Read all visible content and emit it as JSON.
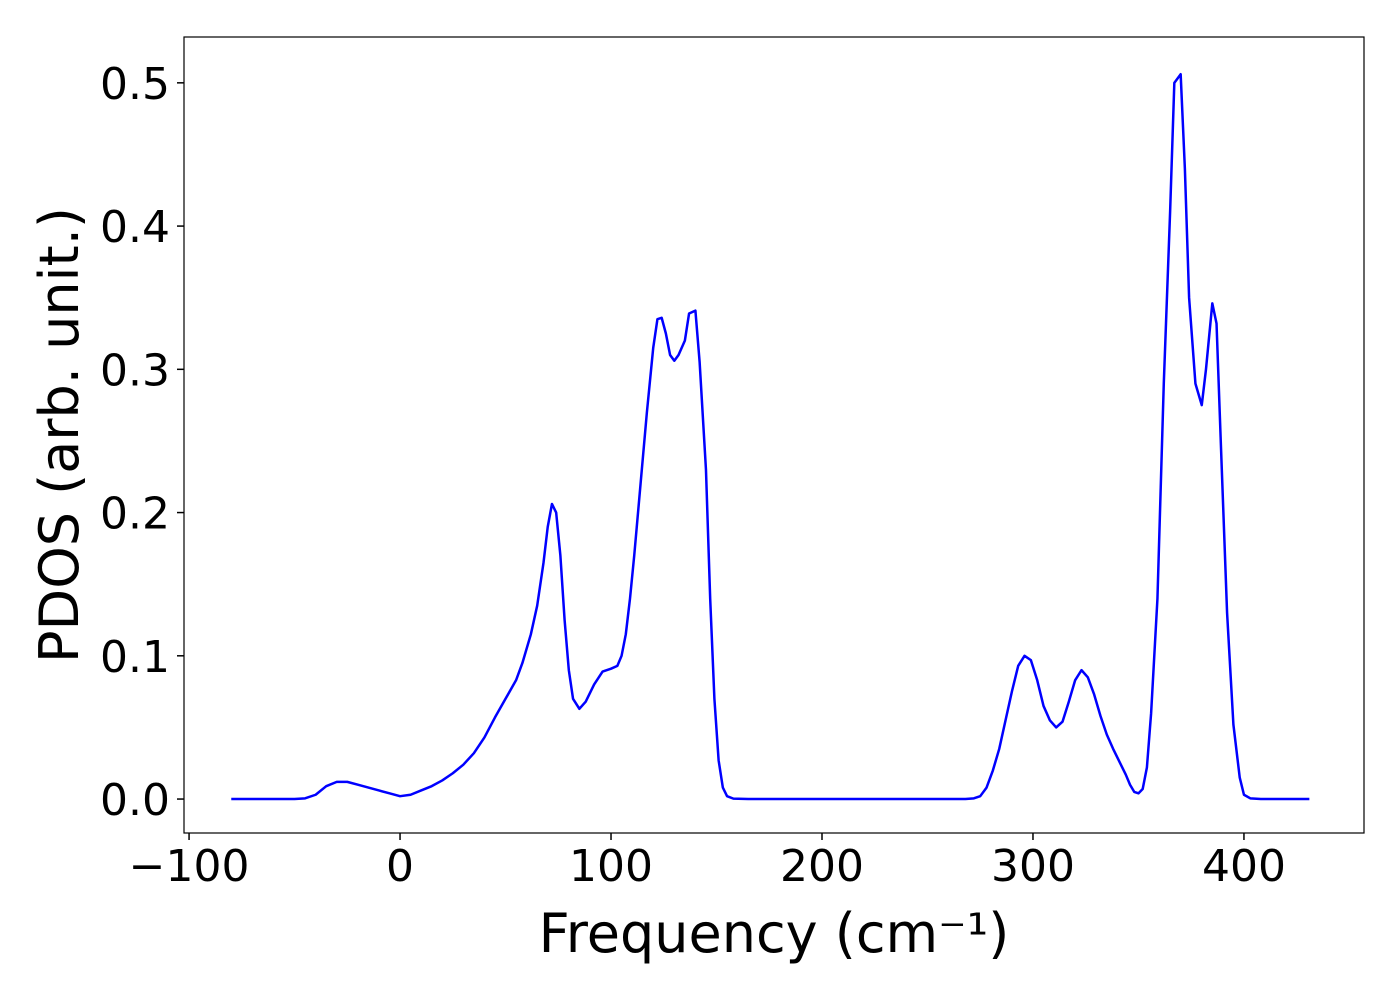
{
  "chart_data": {
    "type": "line",
    "x_label": "Frequency (cm⁻¹)",
    "y_label": "PDOS (arb. unit.)",
    "xlim": [
      -102.4,
      456.9
    ],
    "ylim": [
      -0.0237,
      0.532
    ],
    "xticks": [
      {
        "value": -100,
        "label": "−100"
      },
      0,
      100,
      200,
      300,
      400
    ],
    "yticks": [
      {
        "value": 0,
        "label": "0.0"
      },
      0.1,
      0.2,
      0.3,
      0.4,
      0.5
    ],
    "grid": false,
    "series": [
      {
        "color": "#0000ff",
        "x": [
          -80,
          -70,
          -60,
          -50,
          -45,
          -40,
          -35,
          -30,
          -25,
          -20,
          -15,
          -10,
          -5,
          0,
          5,
          10,
          15,
          20,
          25,
          30,
          35,
          40,
          45,
          50,
          55,
          58,
          62,
          65,
          68,
          70,
          72,
          74,
          76,
          78,
          80,
          82,
          85,
          88,
          92,
          96,
          100,
          103,
          105,
          107,
          109,
          111,
          114,
          117,
          120,
          122,
          124,
          126,
          128,
          130,
          132,
          135,
          137,
          140,
          142,
          145,
          147,
          149,
          151,
          153,
          155,
          158,
          165,
          200,
          250,
          268,
          272,
          275,
          278,
          281,
          284,
          287,
          290,
          293,
          296,
          299,
          302,
          305,
          308,
          311,
          314,
          317,
          320,
          323,
          326,
          329,
          332,
          335,
          338,
          341,
          344,
          346,
          348,
          350,
          352,
          354,
          356,
          359,
          362,
          365,
          367,
          370,
          372,
          374,
          377,
          380,
          382,
          385,
          387,
          389,
          392,
          395,
          398,
          400,
          403,
          408,
          420,
          431
        ],
        "values": [
          0,
          0,
          0,
          0,
          0.0005,
          0.003,
          0.009,
          0.012,
          0.012,
          0.01,
          0.008,
          0.006,
          0.004,
          0.002,
          0.003,
          0.006,
          0.009,
          0.013,
          0.018,
          0.024,
          0.032,
          0.043,
          0.057,
          0.07,
          0.083,
          0.095,
          0.115,
          0.135,
          0.165,
          0.19,
          0.206,
          0.2,
          0.17,
          0.125,
          0.09,
          0.07,
          0.063,
          0.068,
          0.08,
          0.089,
          0.091,
          0.093,
          0.1,
          0.115,
          0.14,
          0.17,
          0.22,
          0.27,
          0.315,
          0.335,
          0.336,
          0.325,
          0.31,
          0.306,
          0.31,
          0.32,
          0.339,
          0.341,
          0.305,
          0.23,
          0.14,
          0.07,
          0.027,
          0.008,
          0.002,
          0.0003,
          0,
          0,
          0,
          0,
          0.0005,
          0.002,
          0.008,
          0.02,
          0.035,
          0.055,
          0.075,
          0.093,
          0.1,
          0.097,
          0.083,
          0.065,
          0.055,
          0.05,
          0.054,
          0.068,
          0.083,
          0.09,
          0.085,
          0.073,
          0.058,
          0.045,
          0.035,
          0.026,
          0.017,
          0.01,
          0.005,
          0.004,
          0.007,
          0.022,
          0.06,
          0.14,
          0.29,
          0.41,
          0.5,
          0.506,
          0.44,
          0.35,
          0.29,
          0.275,
          0.3,
          0.346,
          0.332,
          0.25,
          0.13,
          0.052,
          0.015,
          0.003,
          0.0005,
          0,
          0,
          0
        ]
      }
    ]
  }
}
